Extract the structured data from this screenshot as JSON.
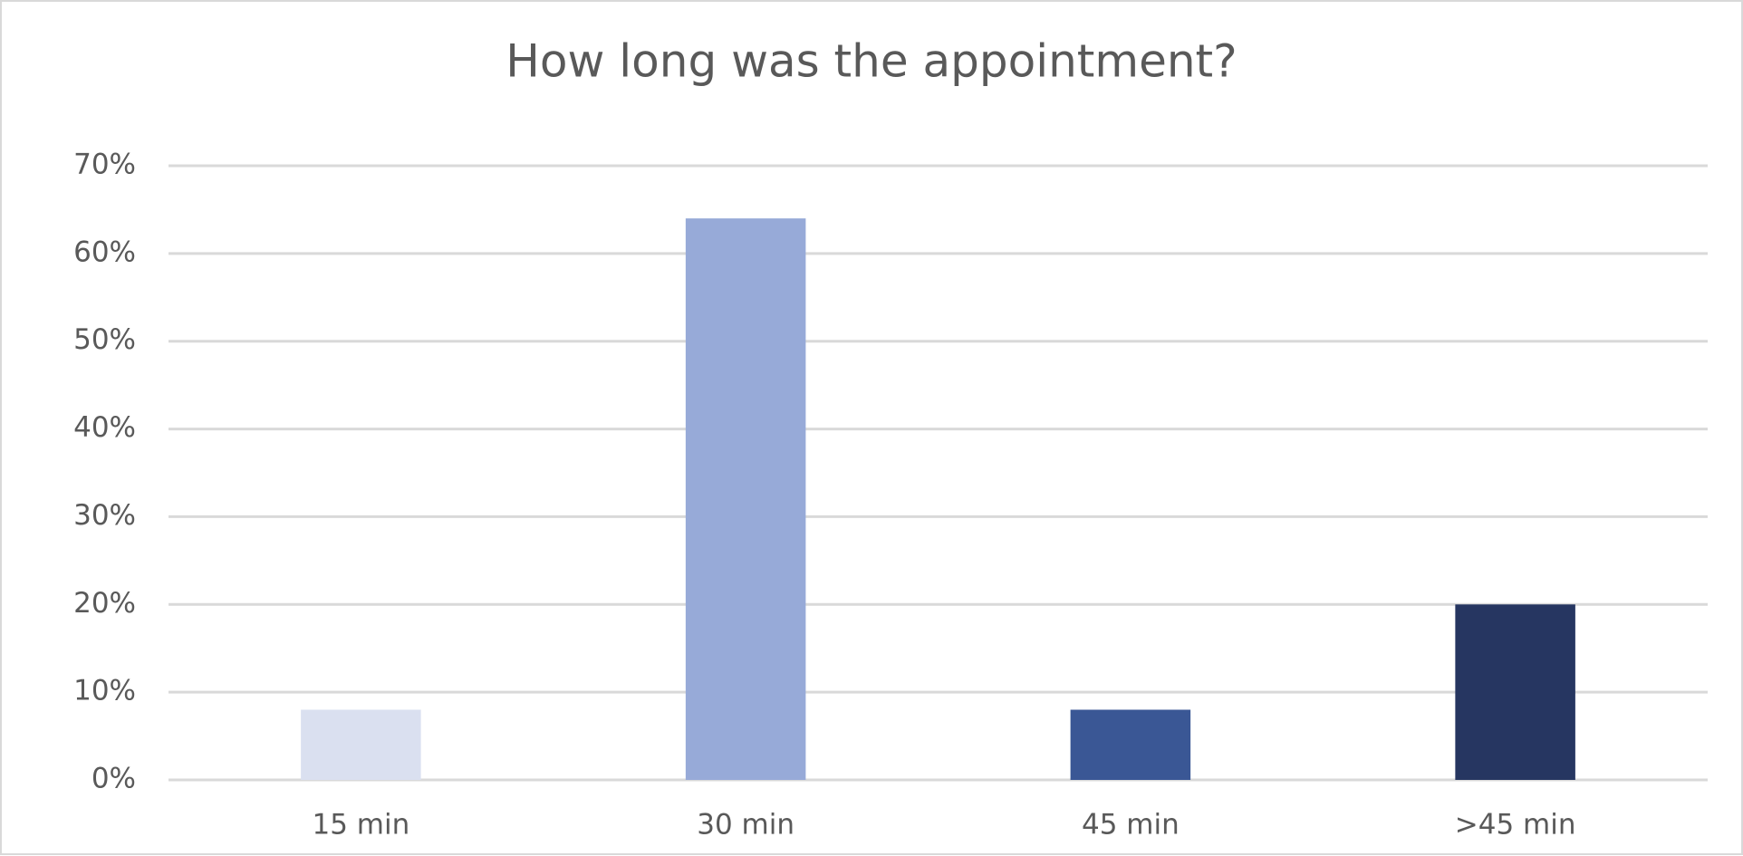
{
  "chart_data": {
    "type": "bar",
    "title": "How long was the appointment?",
    "categories": [
      "15 min",
      "30 min",
      "45 min",
      ">45 min"
    ],
    "values": [
      8,
      64,
      8,
      20
    ],
    "colors": [
      "#dae0f0",
      "#97aad8",
      "#3a5795",
      "#263661"
    ],
    "ylim": [
      0,
      70
    ],
    "yticks": [
      {
        "value": 0,
        "label": "0%"
      },
      {
        "value": 10,
        "label": "10%"
      },
      {
        "value": 20,
        "label": "20%"
      },
      {
        "value": 30,
        "label": "30%"
      },
      {
        "value": 40,
        "label": "40%"
      },
      {
        "value": 50,
        "label": "50%"
      },
      {
        "value": 60,
        "label": "60%"
      },
      {
        "value": 70,
        "label": "70%"
      }
    ],
    "grid": true
  }
}
